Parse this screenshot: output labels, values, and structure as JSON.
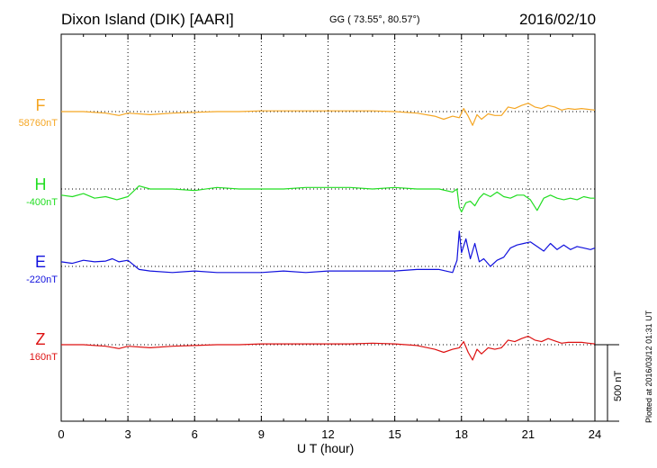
{
  "header": {
    "station": "Dixon Island (DIK)  [AARI]",
    "coords": "GG ( 73.55°,  80.57°)",
    "date": "2016/02/10"
  },
  "footer": {
    "plotted": "Plotted at 2016/03/12 01:31  UT"
  },
  "scale_bar": {
    "label": "500 nT",
    "value_nT": 500
  },
  "chart_data": {
    "type": "line",
    "title": "",
    "xlabel": "U T (hour)",
    "ylabel": "",
    "xlim": [
      0,
      24
    ],
    "xticks": [
      0,
      3,
      6,
      9,
      12,
      15,
      18,
      21,
      24
    ],
    "grid": true,
    "series": [
      {
        "name": "F",
        "baseline_label": "58760nT",
        "color": "#f5a623",
        "x": [
          0,
          1,
          2,
          2.6,
          3,
          4,
          5,
          6,
          7,
          8,
          9,
          10,
          11,
          12,
          13,
          14,
          15,
          16,
          16.8,
          17.2,
          17.6,
          17.9,
          18.1,
          18.3,
          18.5,
          18.7,
          18.9,
          19.2,
          19.5,
          19.8,
          20.1,
          20.4,
          20.7,
          21.0,
          21.3,
          21.6,
          21.9,
          22.2,
          22.5,
          22.8,
          23.1,
          23.4,
          23.7,
          24
        ],
        "values": [
          0,
          0,
          -10,
          -25,
          -10,
          -20,
          -10,
          -5,
          0,
          0,
          5,
          5,
          5,
          5,
          5,
          5,
          0,
          -10,
          -30,
          -50,
          -30,
          -40,
          20,
          -30,
          -90,
          -20,
          -50,
          -15,
          -25,
          -25,
          30,
          20,
          40,
          55,
          30,
          20,
          40,
          30,
          10,
          20,
          15,
          20,
          15,
          10
        ]
      },
      {
        "name": "H",
        "baseline_label": "-400nT",
        "color": "#22dd22",
        "x": [
          0,
          0.5,
          1,
          1.5,
          2,
          2.5,
          3,
          3.5,
          4,
          5,
          6,
          7,
          8,
          9,
          10,
          11,
          12,
          13,
          14,
          15,
          16,
          17,
          17.6,
          17.8,
          17.9,
          18.0,
          18.2,
          18.4,
          18.6,
          18.8,
          19.0,
          19.3,
          19.6,
          19.9,
          20.2,
          20.5,
          20.8,
          21.1,
          21.4,
          21.7,
          22.0,
          22.3,
          22.6,
          22.9,
          23.2,
          23.5,
          23.8,
          24
        ],
        "values": [
          -40,
          -50,
          -30,
          -60,
          -50,
          -70,
          -50,
          20,
          0,
          0,
          -10,
          10,
          0,
          0,
          0,
          10,
          10,
          10,
          0,
          10,
          0,
          0,
          -20,
          0,
          -120,
          -150,
          -90,
          -80,
          -110,
          -60,
          -30,
          -50,
          -20,
          -50,
          -60,
          -40,
          -40,
          -70,
          -140,
          -60,
          -40,
          -60,
          -70,
          -60,
          -70,
          -50,
          -60,
          -60
        ]
      },
      {
        "name": "E",
        "baseline_label": "-220nT",
        "color": "#1111dd",
        "x": [
          0,
          0.5,
          1,
          1.5,
          2,
          2.3,
          2.6,
          3,
          3.5,
          4,
          5,
          6,
          7,
          8,
          9,
          10,
          11,
          12,
          13,
          14,
          15,
          16,
          17,
          17.6,
          17.8,
          17.9,
          18.0,
          18.2,
          18.4,
          18.6,
          18.8,
          19.0,
          19.3,
          19.6,
          19.9,
          20.2,
          20.5,
          20.8,
          21.1,
          21.4,
          21.7,
          22.0,
          22.3,
          22.6,
          22.9,
          23.2,
          23.5,
          23.8,
          24
        ],
        "values": [
          30,
          20,
          40,
          30,
          35,
          50,
          30,
          40,
          -20,
          -30,
          -40,
          -30,
          -40,
          -40,
          -40,
          -30,
          -40,
          -30,
          -30,
          -30,
          -30,
          -20,
          -20,
          -40,
          40,
          230,
          90,
          180,
          50,
          150,
          30,
          50,
          0,
          40,
          60,
          120,
          140,
          150,
          160,
          130,
          100,
          150,
          110,
          140,
          110,
          130,
          120,
          110,
          120
        ]
      },
      {
        "name": "Z",
        "baseline_label": "160nT",
        "color": "#dd1111",
        "x": [
          0,
          1,
          2,
          2.6,
          3,
          4,
          5,
          6,
          7,
          8,
          9,
          10,
          11,
          12,
          13,
          14,
          15,
          16,
          16.8,
          17.2,
          17.6,
          17.9,
          18.1,
          18.3,
          18.5,
          18.7,
          18.9,
          19.2,
          19.5,
          19.8,
          20.1,
          20.4,
          20.7,
          21.0,
          21.3,
          21.6,
          21.9,
          22.2,
          22.5,
          22.8,
          23.1,
          23.4,
          23.7,
          24
        ],
        "values": [
          0,
          0,
          -10,
          -25,
          -10,
          -20,
          -10,
          -5,
          0,
          0,
          5,
          5,
          5,
          5,
          5,
          10,
          5,
          -5,
          -30,
          -50,
          -30,
          -20,
          20,
          -50,
          -100,
          -30,
          -60,
          -20,
          -30,
          -20,
          30,
          20,
          40,
          55,
          30,
          20,
          40,
          25,
          10,
          15,
          15,
          15,
          10,
          5
        ]
      }
    ]
  }
}
